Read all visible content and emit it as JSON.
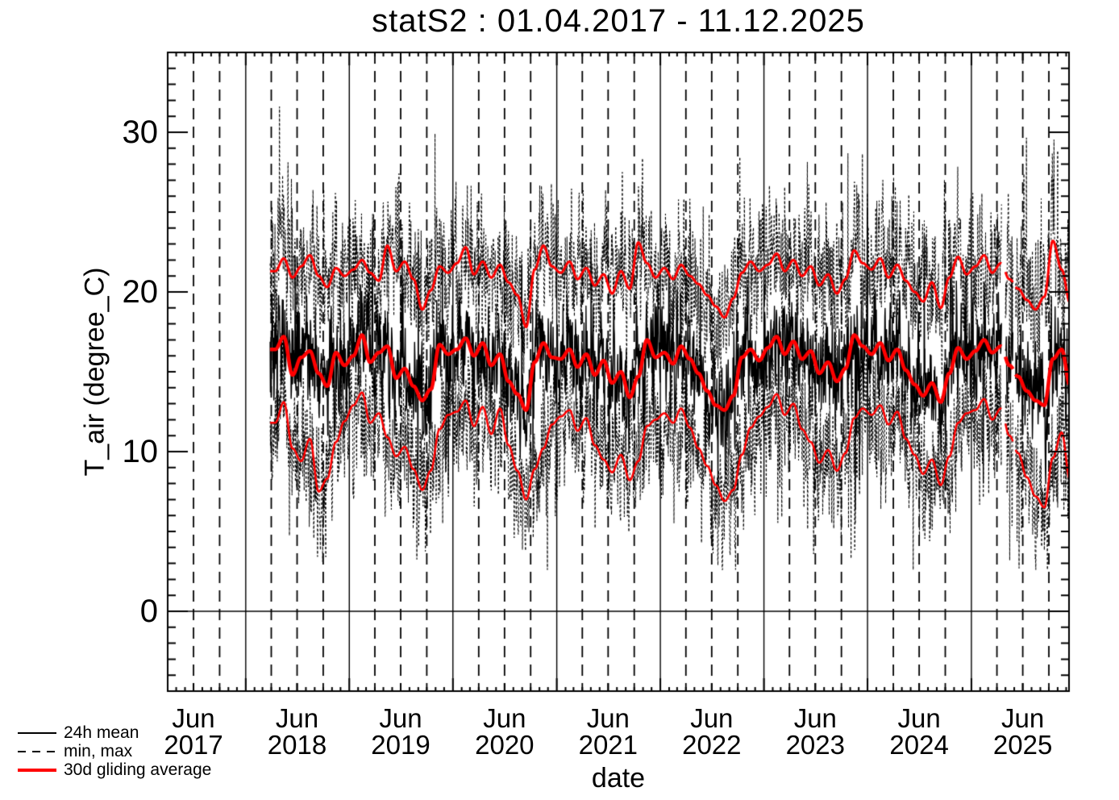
{
  "legend": {
    "items": [
      {
        "label": "24h mean",
        "style": "solid-black"
      },
      {
        "label": "min, max",
        "style": "dashed-black"
      },
      {
        "label": "30d gliding average",
        "style": "solid-red"
      }
    ]
  },
  "colors": {
    "black": "#000000",
    "red": "#ff0000",
    "background": "#ffffff"
  },
  "chart_data": {
    "type": "line",
    "title": "statS2 : 01.04.2017 - 11.12.2025",
    "xlabel": "date",
    "ylabel": "T_air (degree_C)",
    "ylim": [
      -5,
      35
    ],
    "y_ticks": [
      0,
      10,
      20,
      30
    ],
    "y_minor_step": 1,
    "x_axis": {
      "start": "2017-04-01",
      "end": "2025-12-11",
      "data_start": "2018-03-28",
      "tick_label_month": "Jun",
      "tick_label_years": [
        2017,
        2018,
        2019,
        2020,
        2021,
        2022,
        2023,
        2024,
        2025
      ],
      "gridline_solid": "year-start",
      "gridline_dashed": "quarter-start",
      "minor_ticks": "monthly"
    },
    "gaps": [
      [
        "2025-04-18",
        "2025-04-30"
      ],
      [
        "2025-05-28",
        "2025-06-05"
      ]
    ],
    "sample_months": [
      "2018-04",
      "2018-05",
      "2018-06",
      "2018-07",
      "2018-08",
      "2018-09",
      "2018-10",
      "2018-11",
      "2018-12",
      "2019-01",
      "2019-02",
      "2019-03",
      "2019-04",
      "2019-05",
      "2019-06",
      "2019-07",
      "2019-08",
      "2019-09",
      "2019-10",
      "2019-11",
      "2019-12",
      "2020-01",
      "2020-02",
      "2020-03",
      "2020-04",
      "2020-05",
      "2020-06",
      "2020-07",
      "2020-08",
      "2020-09",
      "2020-10",
      "2020-11",
      "2020-12",
      "2021-01",
      "2021-02",
      "2021-03",
      "2021-04",
      "2021-05",
      "2021-06",
      "2021-07",
      "2021-08",
      "2021-09",
      "2021-10",
      "2021-11",
      "2021-12",
      "2022-01",
      "2022-02",
      "2022-03",
      "2022-04",
      "2022-05",
      "2022-06",
      "2022-07",
      "2022-08",
      "2022-09",
      "2022-10",
      "2022-11",
      "2022-12",
      "2023-01",
      "2023-02",
      "2023-03",
      "2023-04",
      "2023-05",
      "2023-06",
      "2023-07",
      "2023-08",
      "2023-09",
      "2023-10",
      "2023-11",
      "2023-12",
      "2024-01",
      "2024-02",
      "2024-03",
      "2024-04",
      "2024-05",
      "2024-06",
      "2024-07",
      "2024-08",
      "2024-09",
      "2024-10",
      "2024-11",
      "2024-12",
      "2025-01",
      "2025-02",
      "2025-03",
      "2025-04",
      "2025-05",
      "2025-06",
      "2025-07",
      "2025-08",
      "2025-09",
      "2025-10",
      "2025-11",
      "2025-12"
    ],
    "series": [
      {
        "name": "30d gliding average of daily max",
        "color": "#ff0000",
        "width": 3,
        "values": [
          21.3,
          22.1,
          20.9,
          21.6,
          22.3,
          21.0,
          20.3,
          21.5,
          21.0,
          21.4,
          22.0,
          21.2,
          20.7,
          22.9,
          21.3,
          21.9,
          20.8,
          18.9,
          20.1,
          21.6,
          21.2,
          21.8,
          22.8,
          21.1,
          21.9,
          20.9,
          21.7,
          20.6,
          19.8,
          17.8,
          21.4,
          22.9,
          21.6,
          21.2,
          21.9,
          20.8,
          21.5,
          20.4,
          21.1,
          19.9,
          21.3,
          20.2,
          23.1,
          21.8,
          20.9,
          21.5,
          20.8,
          21.7,
          21.0,
          20.5,
          19.8,
          19.1,
          18.4,
          19.6,
          21.2,
          21.9,
          21.3,
          21.7,
          22.4,
          21.3,
          22.0,
          21.0,
          21.6,
          20.4,
          21.1,
          19.9,
          20.8,
          22.6,
          21.8,
          21.4,
          22.1,
          20.9,
          21.7,
          20.7,
          20.0,
          19.4,
          20.6,
          19.0,
          20.9,
          22.2,
          21.1,
          21.6,
          22.3,
          21.2,
          21.8,
          20.8,
          20.2,
          19.5,
          18.9,
          19.7,
          23.2,
          21.4,
          19.3
        ]
      },
      {
        "name": "30d gliding average of 24h mean",
        "color": "#ff0000",
        "width": 4.5,
        "values": [
          16.4,
          17.2,
          14.8,
          15.9,
          16.3,
          14.9,
          14.1,
          16.2,
          15.4,
          16.0,
          17.3,
          15.6,
          16.2,
          16.6,
          14.6,
          15.2,
          14.1,
          13.2,
          13.9,
          16.7,
          16.1,
          16.4,
          17.1,
          16.0,
          16.8,
          15.4,
          16.1,
          14.4,
          13.6,
          12.6,
          15.6,
          16.8,
          15.9,
          15.8,
          16.4,
          15.3,
          16.1,
          14.8,
          15.7,
          14.3,
          15.0,
          13.4,
          14.7,
          17.0,
          15.9,
          16.2,
          15.5,
          16.6,
          15.8,
          14.9,
          13.8,
          12.9,
          12.6,
          13.5,
          15.9,
          16.4,
          15.7,
          16.5,
          17.2,
          16.1,
          16.9,
          15.8,
          16.3,
          14.9,
          15.6,
          14.4,
          15.2,
          17.3,
          16.6,
          16.1,
          16.8,
          15.7,
          16.4,
          15.1,
          14.2,
          13.5,
          14.3,
          13.1,
          14.9,
          16.5,
          15.8,
          16.3,
          17.0,
          16.2,
          16.6,
          15.4,
          14.7,
          13.8,
          13.2,
          12.9,
          15.8,
          16.4,
          14.1
        ]
      },
      {
        "name": "30d gliding average of daily min",
        "color": "#ff0000",
        "width": 2.5,
        "values": [
          11.8,
          13.1,
          10.2,
          9.4,
          10.8,
          7.5,
          8.3,
          10.6,
          11.9,
          12.9,
          13.7,
          11.8,
          12.4,
          10.9,
          9.7,
          10.3,
          8.9,
          7.6,
          8.8,
          11.4,
          12.3,
          12.5,
          13.2,
          11.6,
          12.8,
          11.1,
          12.7,
          10.4,
          8.8,
          7.0,
          8.9,
          10.2,
          11.7,
          12.2,
          12.6,
          11.3,
          12.1,
          10.4,
          9.5,
          8.7,
          9.8,
          8.2,
          9.4,
          11.6,
          12.0,
          12.4,
          11.8,
          12.7,
          11.5,
          10.2,
          9.1,
          7.9,
          6.9,
          7.6,
          9.8,
          11.5,
          12.2,
          12.8,
          13.6,
          12.3,
          13.0,
          11.4,
          10.6,
          9.3,
          10.1,
          8.8,
          9.9,
          12.1,
          12.7,
          12.3,
          12.9,
          11.7,
          12.5,
          10.8,
          9.8,
          8.6,
          9.5,
          7.9,
          9.7,
          11.8,
          12.4,
          12.6,
          13.3,
          12.0,
          12.7,
          11.0,
          9.9,
          8.4,
          7.2,
          6.5,
          9.6,
          11.2,
          8.2
        ]
      }
    ],
    "noise": {
      "seed": 20171201,
      "mean_ar": 0.5,
      "mean_sigma": 1.35,
      "env_ar": 0.45,
      "env_sigma": 1.55,
      "env_scale": 1.25,
      "spike_prob": 0.014,
      "spike_base": 2.5,
      "spike_rand": 2.8,
      "minmax_dash": [
        3,
        2.5
      ],
      "cap_max": 31.6,
      "floor_min": 2.6
    }
  }
}
